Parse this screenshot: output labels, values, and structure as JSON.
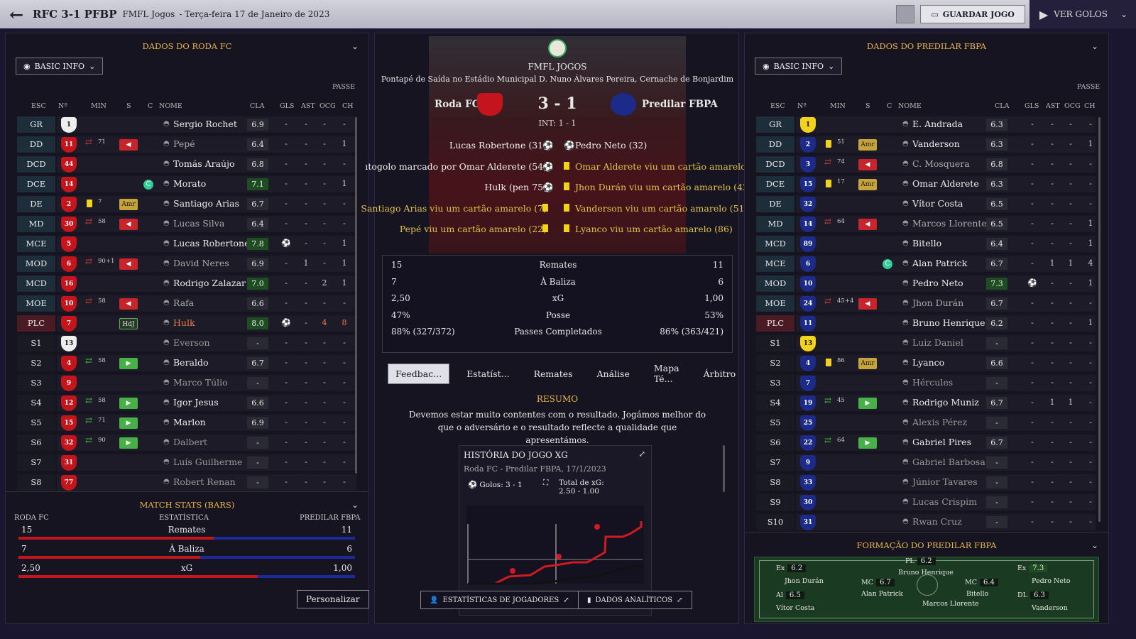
{
  "topbar": {
    "score": "RFC 3-1 PFBP",
    "competition": "FMFL Jogos",
    "date": "- Terça-feira 17 de Janeiro de 2023",
    "save": "GUARDAR JOGO",
    "goals": "VER GOLOS"
  },
  "left": {
    "title": "DADOS DO RODA FC",
    "basic": "BASIC INFO",
    "passe": "PASSE",
    "cols": {
      "esc": "ESC",
      "n": "Nº",
      "min": "MIN",
      "s": "S",
      "c": "C",
      "nome": "NOME",
      "cla": "CLA",
      "gls": "GLS",
      "ast": "AST",
      "ocg": "OCG",
      "ch": "CH"
    },
    "players": [
      {
        "pos": "GR",
        "num": "1",
        "name": "Sergio Rochet",
        "cla": "6.9",
        "gls": "-",
        "ast": "-",
        "ocg": "-",
        "ch": "-"
      },
      {
        "pos": "DD",
        "num": "11",
        "min": "71",
        "sub": "red",
        "name": "Pepé",
        "cla": "6.4",
        "gls": "-",
        "ast": "-",
        "ocg": "-",
        "ch": "1"
      },
      {
        "pos": "DCD",
        "num": "44",
        "name": "Tomás Araújo",
        "cla": "6.8",
        "gls": "-",
        "ast": "-",
        "ocg": "-",
        "ch": "-"
      },
      {
        "pos": "DCE",
        "num": "14",
        "captain": "C",
        "name": "Morato",
        "cla": "7.1",
        "gls": "-",
        "ast": "-",
        "ocg": "-",
        "ch": "1"
      },
      {
        "pos": "DE",
        "num": "2",
        "min": "7",
        "tag": "Amr",
        "name": "Santiago Arias",
        "cla": "6.7",
        "gls": "-",
        "ast": "-",
        "ocg": "-",
        "ch": "-"
      },
      {
        "pos": "MD",
        "num": "30",
        "min": "58",
        "sub": "red",
        "name": "Lucas Silva",
        "cla": "6.4",
        "gls": "-",
        "ast": "-",
        "ocg": "-",
        "ch": "-"
      },
      {
        "pos": "MCE",
        "num": "5",
        "name": "Lucas Robertone",
        "cla": "7.8",
        "gls": "⚽",
        "ast": "-",
        "ocg": "-",
        "ch": "1"
      },
      {
        "pos": "MOD",
        "num": "6",
        "min": "90+1",
        "sub": "red",
        "name": "David Neres",
        "cla": "6.9",
        "gls": "-",
        "ast": "1",
        "ocg": "-",
        "ch": "1"
      },
      {
        "pos": "MCD",
        "num": "16",
        "name": "Rodrigo Zalazar",
        "cla": "7.0",
        "gls": "-",
        "ast": "-",
        "ocg": "2",
        "ch": "1"
      },
      {
        "pos": "MOE",
        "num": "10",
        "min": "58",
        "sub": "red",
        "name": "Rafa",
        "cla": "6.6",
        "gls": "-",
        "ast": "-",
        "ocg": "-",
        "ch": "-"
      },
      {
        "pos": "PLC",
        "num": "7",
        "tag": "HdJ",
        "name": "Hulk",
        "cla": "8.0",
        "gls": "⚽",
        "ast": "-",
        "ocg": "4",
        "ch": "8"
      },
      {
        "pos": "S1",
        "num": "13",
        "name": "Everson",
        "cla": "-",
        "gls": "-",
        "ast": "-",
        "ocg": "-",
        "ch": "-"
      },
      {
        "pos": "S2",
        "num": "4",
        "min": "58",
        "sub": "green",
        "name": "Beraldo",
        "cla": "6.7",
        "gls": "-",
        "ast": "-",
        "ocg": "-",
        "ch": "-"
      },
      {
        "pos": "S3",
        "num": "9",
        "name": "Marco Túlio",
        "cla": "-",
        "gls": "-",
        "ast": "-",
        "ocg": "-",
        "ch": "-"
      },
      {
        "pos": "S4",
        "num": "12",
        "min": "58",
        "sub": "green",
        "name": "Igor Jesus",
        "cla": "6.6",
        "gls": "-",
        "ast": "-",
        "ocg": "-",
        "ch": "-"
      },
      {
        "pos": "S5",
        "num": "15",
        "min": "71",
        "sub": "green",
        "name": "Marlon",
        "cla": "6.9",
        "gls": "-",
        "ast": "-",
        "ocg": "-",
        "ch": "-"
      },
      {
        "pos": "S6",
        "num": "32",
        "min": "90",
        "sub": "green",
        "name": "Dalbert",
        "cla": "-",
        "gls": "-",
        "ast": "-",
        "ocg": "-",
        "ch": "-"
      },
      {
        "pos": "S7",
        "num": "31",
        "name": "Luís Guilherme",
        "cla": "-",
        "gls": "-",
        "ast": "-",
        "ocg": "-",
        "ch": "-"
      },
      {
        "pos": "S8",
        "num": "77",
        "name": "Robert Renan",
        "cla": "-",
        "gls": "-",
        "ast": "-",
        "ocg": "-",
        "ch": "-"
      }
    ],
    "matchstats": {
      "title": "MATCH STATS (BARS)",
      "home": "RODA FC",
      "stat": "ESTATÍSTICA",
      "away": "PREDILAR FBPA",
      "rows": [
        {
          "label": "Remates",
          "home": "15",
          "away": "11",
          "hf": 0.58
        },
        {
          "label": "À Baliza",
          "home": "7",
          "away": "6",
          "hf": 0.54
        },
        {
          "label": "xG",
          "home": "2,50",
          "away": "1,00",
          "hf": 0.71
        }
      ]
    },
    "customize": "Personalizar"
  },
  "right": {
    "title": "DADOS DO PREDILAR FBPA",
    "basic": "BASIC INFO",
    "passe": "PASSE",
    "players": [
      {
        "pos": "GR",
        "num": "1",
        "name": "E. Andrada",
        "cla": "6.3",
        "gls": "-",
        "ast": "-",
        "ocg": "-",
        "ch": "-"
      },
      {
        "pos": "DD",
        "num": "2",
        "min": "51",
        "tag": "Amr",
        "name": "Vanderson",
        "cla": "6.3",
        "gls": "-",
        "ast": "-",
        "ocg": "-",
        "ch": "1"
      },
      {
        "pos": "DCD",
        "num": "3",
        "min": "74",
        "sub": "red",
        "name": "C. Mosquera",
        "cla": "6.8",
        "gls": "-",
        "ast": "-",
        "ocg": "-",
        "ch": "-"
      },
      {
        "pos": "DCE",
        "num": "15",
        "min": "17",
        "tag": "Amr",
        "name": "Omar Alderete",
        "cla": "6.3",
        "gls": "-",
        "ast": "-",
        "ocg": "-",
        "ch": "-"
      },
      {
        "pos": "DE",
        "num": "32",
        "name": "Vítor Costa",
        "cla": "6.5",
        "gls": "-",
        "ast": "-",
        "ocg": "-",
        "ch": "-"
      },
      {
        "pos": "MD",
        "num": "14",
        "min": "64",
        "sub": "red",
        "name": "Marcos Llorente",
        "cla": "6.5",
        "gls": "-",
        "ast": "-",
        "ocg": "-",
        "ch": "1"
      },
      {
        "pos": "MCD",
        "num": "89",
        "name": "Bitello",
        "cla": "6.4",
        "gls": "-",
        "ast": "-",
        "ocg": "-",
        "ch": "1"
      },
      {
        "pos": "MCE",
        "num": "6",
        "captain": "C",
        "name": "Alan Patrick",
        "cla": "6.7",
        "gls": "-",
        "ast": "1",
        "ocg": "1",
        "ch": "4"
      },
      {
        "pos": "MOD",
        "num": "10",
        "name": "Pedro Neto",
        "cla": "7.3",
        "gls": "⚽",
        "ast": "-",
        "ocg": "-",
        "ch": "1"
      },
      {
        "pos": "MOE",
        "num": "24",
        "min": "45+4",
        "sub": "red",
        "name": "Jhon Durán",
        "cla": "6.7",
        "gls": "-",
        "ast": "-",
        "ocg": "-",
        "ch": "-"
      },
      {
        "pos": "PLC",
        "num": "11",
        "name": "Bruno Henrique",
        "cla": "6.2",
        "gls": "-",
        "ast": "-",
        "ocg": "-",
        "ch": "1"
      },
      {
        "pos": "S1",
        "num": "13",
        "name": "Luiz Daniel",
        "cla": "-",
        "gls": "-",
        "ast": "-",
        "ocg": "-",
        "ch": "-"
      },
      {
        "pos": "S2",
        "num": "4",
        "min": "86",
        "tag": "Amr",
        "name": "Lyanco",
        "cla": "6.6",
        "gls": "-",
        "ast": "-",
        "ocg": "-",
        "ch": "-"
      },
      {
        "pos": "S3",
        "num": "7",
        "name": "Hércules",
        "cla": "-",
        "gls": "-",
        "ast": "-",
        "ocg": "-",
        "ch": "-"
      },
      {
        "pos": "S4",
        "num": "19",
        "min": "45",
        "sub": "green",
        "name": "Rodrigo Muniz",
        "cla": "6.7",
        "gls": "-",
        "ast": "1",
        "ocg": "1",
        "ch": "-"
      },
      {
        "pos": "S5",
        "num": "25",
        "name": "Alexis Pérez",
        "cla": "-",
        "gls": "-",
        "ast": "-",
        "ocg": "-",
        "ch": "-"
      },
      {
        "pos": "S6",
        "num": "22",
        "min": "64",
        "sub": "green",
        "name": "Gabriel Pires",
        "cla": "6.7",
        "gls": "-",
        "ast": "-",
        "ocg": "-",
        "ch": "-"
      },
      {
        "pos": "S7",
        "num": "9",
        "name": "Gabriel Barbosa",
        "cla": "-",
        "gls": "-",
        "ast": "-",
        "ocg": "-",
        "ch": "-"
      },
      {
        "pos": "S8",
        "num": "33",
        "name": "Júnior Tavares",
        "cla": "-",
        "gls": "-",
        "ast": "-",
        "ocg": "-",
        "ch": "-"
      },
      {
        "pos": "S9",
        "num": "30",
        "name": "Lucas Crispim",
        "cla": "-",
        "gls": "-",
        "ast": "-",
        "ocg": "-",
        "ch": "-"
      },
      {
        "pos": "S10",
        "num": "31",
        "name": "Rwan Cruz",
        "cla": "-",
        "gls": "-",
        "ast": "-",
        "ocg": "-",
        "ch": "-"
      }
    ],
    "formation": {
      "title": "FORMAÇÃO DO PREDILAR FBPA"
    }
  },
  "center": {
    "comp": "FMFL JOGOS",
    "venue": "Pontapé de Saída no Estádio Municipal D. Nuno Álvares Pereira, Cernache de Bonjardim",
    "home": "Roda FC",
    "away": "Predilar FBPA",
    "score": "3 - 1",
    "ht": "INT: 1 - 1",
    "events_home": [
      "Lucas Robertone (31)",
      "ıtogolo marcado por Omar Alderete (54)",
      "Hulk (pen 75)",
      "Santiago Arias viu um cartão amarelo (7)",
      "Pepé viu um cartão amarelo (22)"
    ],
    "events_away": [
      "Pedro Neto (32)",
      "Omar Alderete viu um cartão amarelo (1",
      "Jhon Durán viu um cartão amarelo (42)",
      "Vanderson viu um cartão amarelo (51)",
      "Lyanco viu um cartão amarelo (86)"
    ],
    "stats": [
      {
        "h": "15",
        "l": "Remates",
        "a": "11"
      },
      {
        "h": "7",
        "l": "À Baliza",
        "a": "6"
      },
      {
        "h": "2,50",
        "l": "xG",
        "a": "1,00"
      },
      {
        "h": "47%",
        "l": "Posse",
        "a": "53%"
      },
      {
        "h": "88% (327/372)",
        "l": "Passes Completados",
        "a": "86% (363/421)"
      }
    ],
    "tabs": [
      "Feedbac...",
      "Estatíst...",
      "Remates",
      "Análise",
      "Mapa Té...",
      "Árbitro"
    ],
    "resumo": "RESUMO",
    "summary": "Devemos estar muito contentes com o resultado. Jogámos melhor do que o adversário e o resultado reflecte a qualidade que apresentámos.",
    "xg": {
      "title": "HISTÓRIA DO JOGO XG",
      "sub": "Roda FC - Predilar FBPA, 17/1/2023",
      "goals": "Golos: 3 - 1",
      "total": "Total de xG: 2.50 - 1.00"
    },
    "btn_players": "ESTATÍSTICAS DE JOGADORES",
    "btn_analytics": "DADOS ANALÍTICOS"
  },
  "colors": {
    "home_shirt": "#c4151c",
    "away_shirt": "#1c2a8a",
    "accent": "#e8b44c"
  }
}
